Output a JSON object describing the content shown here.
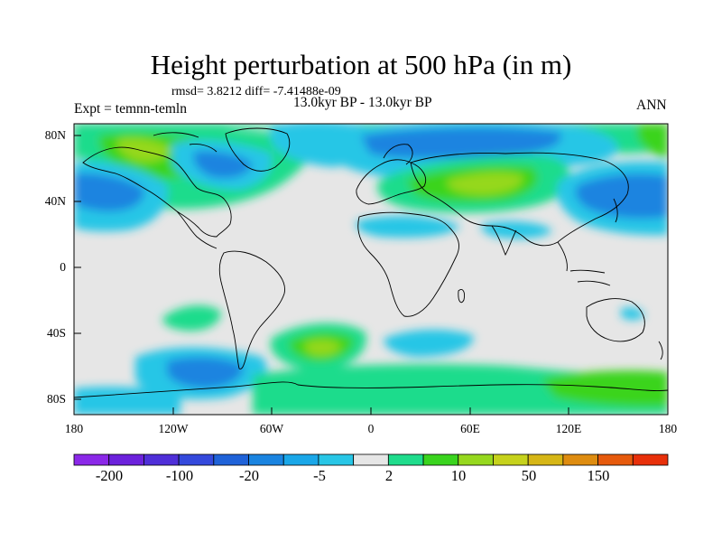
{
  "title": "Height perturbation at 500 hPa (in m)",
  "stats": "rmsd= 3.8212 diff= -7.41488e-09",
  "subtitle": "13.0kyr BP - 13.0kyr BP",
  "experiment": "Expt = temnn-temln",
  "season": "ANN",
  "lat_labels": [
    "80N",
    "40N",
    "0",
    "40S",
    "80S"
  ],
  "lon_labels": [
    "180",
    "120W",
    "60W",
    "0",
    "60E",
    "120E",
    "180"
  ],
  "colorbar": {
    "colors": [
      "#8b28e8",
      "#6c22dc",
      "#4f2fd8",
      "#3449dc",
      "#1f62d8",
      "#1a84e0",
      "#1aa7e8",
      "#28c6e6",
      "#e6e6e6",
      "#1fdc8c",
      "#3ad41e",
      "#96d81e",
      "#c6d21c",
      "#d6b616",
      "#de8c10",
      "#e65a0c",
      "#e8300a"
    ],
    "labels": [
      "-200",
      "-100",
      "-20",
      "-5",
      "2",
      "10",
      "50",
      "150"
    ]
  },
  "map": {
    "ocean_color": "#e6e6e6",
    "field_levels": {
      "light_blue": "#28c6e6",
      "blue": "#1a84e0",
      "mid_blue": "#1f62d8",
      "aqua_green": "#1fdc8c",
      "green": "#3ad41e",
      "yellow_green": "#96d81e"
    }
  }
}
